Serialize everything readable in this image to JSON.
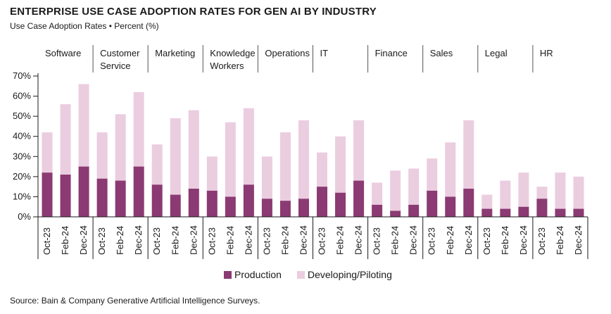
{
  "title": "ENTERPRISE USE CASE ADOPTION RATES FOR GEN AI BY INDUSTRY",
  "subtitle": "Use Case Adoption Rates • Percent (%)",
  "source": "Source: Bain & Company Generative Artificial Intelligence Surveys.",
  "colors": {
    "production": "#8b3a73",
    "developing": "#ebcde0"
  },
  "chart_data": {
    "type": "bar",
    "stacked": true,
    "groups": [
      {
        "label": [
          "Software"
        ],
        "periods": [
          "Oct-23",
          "Feb-24",
          "Dec-24"
        ],
        "production": [
          22,
          21,
          25
        ],
        "developing": [
          20,
          35,
          41
        ]
      },
      {
        "label": [
          "Customer",
          "Service"
        ],
        "periods": [
          "Oct-23",
          "Feb-24",
          "Dec-24"
        ],
        "production": [
          19,
          18,
          25
        ],
        "developing": [
          23,
          33,
          37
        ]
      },
      {
        "label": [
          "Marketing"
        ],
        "periods": [
          "Oct-23",
          "Feb-24",
          "Dec-24"
        ],
        "production": [
          16,
          11,
          14
        ],
        "developing": [
          20,
          38,
          39
        ]
      },
      {
        "label": [
          "Knowledge",
          "Workers"
        ],
        "periods": [
          "Oct-23",
          "Feb-24",
          "Dec-24"
        ],
        "production": [
          13,
          10,
          16
        ],
        "developing": [
          17,
          37,
          38
        ]
      },
      {
        "label": [
          "Operations"
        ],
        "periods": [
          "Oct-23",
          "Feb-24",
          "Dec-24"
        ],
        "production": [
          9,
          8,
          9
        ],
        "developing": [
          21,
          34,
          39
        ]
      },
      {
        "label": [
          "IT"
        ],
        "periods": [
          "Oct-23",
          "Feb-24",
          "Dec-24"
        ],
        "production": [
          15,
          12,
          18
        ],
        "developing": [
          17,
          28,
          30
        ]
      },
      {
        "label": [
          "Finance"
        ],
        "periods": [
          "Oct-23",
          "Feb-24",
          "Dec-24"
        ],
        "production": [
          6,
          3,
          6
        ],
        "developing": [
          11,
          20,
          18
        ]
      },
      {
        "label": [
          "Sales"
        ],
        "periods": [
          "Oct-23",
          "Feb-24",
          "Dec-24"
        ],
        "production": [
          13,
          10,
          14
        ],
        "developing": [
          16,
          27,
          34
        ]
      },
      {
        "label": [
          "Legal"
        ],
        "periods": [
          "Oct-23",
          "Feb-24",
          "Dec-24"
        ],
        "production": [
          4,
          4,
          5
        ],
        "developing": [
          7,
          14,
          17
        ]
      },
      {
        "label": [
          "HR"
        ],
        "periods": [
          "Oct-23",
          "Feb-24",
          "Dec-24"
        ],
        "production": [
          9,
          4,
          4
        ],
        "developing": [
          6,
          18,
          16
        ]
      }
    ],
    "series_names": [
      "Production",
      "Developing/Piloting"
    ],
    "y_ticks": [
      "70%",
      "60%",
      "50%",
      "40%",
      "30%",
      "20%",
      "10%",
      "0%"
    ],
    "ylim": [
      0,
      70
    ],
    "legend": "bottom-center"
  }
}
